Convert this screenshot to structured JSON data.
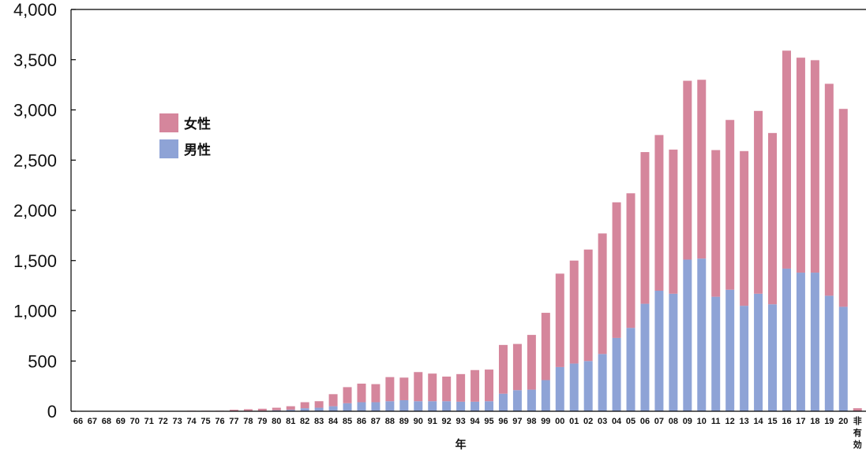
{
  "chart_data": {
    "type": "bar",
    "stacked": true,
    "xlabel": "年",
    "ylabel": "",
    "ylim": [
      0,
      4000
    ],
    "yticks": [
      0,
      500,
      1000,
      1500,
      2000,
      2500,
      3000,
      3500,
      4000
    ],
    "ytick_labels": [
      "0",
      "500",
      "1,000",
      "1,500",
      "2,000",
      "2,500",
      "3,000",
      "3,500",
      "4,000"
    ],
    "grid": false,
    "legend_position": "upper-left",
    "colors": {
      "female": "#d5869c",
      "male": "#8ea3d6"
    },
    "categories": [
      "66",
      "67",
      "68",
      "69",
      "70",
      "71",
      "72",
      "73",
      "74",
      "75",
      "76",
      "77",
      "78",
      "79",
      "80",
      "81",
      "82",
      "83",
      "84",
      "85",
      "86",
      "87",
      "88",
      "89",
      "90",
      "91",
      "92",
      "93",
      "94",
      "95",
      "96",
      "97",
      "98",
      "99",
      "00",
      "01",
      "02",
      "03",
      "04",
      "05",
      "06",
      "07",
      "08",
      "09",
      "10",
      "11",
      "12",
      "13",
      "14",
      "15",
      "16",
      "17",
      "18",
      "19",
      "20",
      "非有効"
    ],
    "series": [
      {
        "name": "男性",
        "values": [
          0,
          0,
          0,
          0,
          0,
          0,
          0,
          0,
          0,
          0,
          0,
          5,
          5,
          5,
          10,
          15,
          30,
          35,
          50,
          80,
          90,
          90,
          100,
          110,
          100,
          100,
          100,
          95,
          95,
          100,
          175,
          210,
          215,
          310,
          440,
          475,
          500,
          570,
          730,
          830,
          1070,
          1200,
          1170,
          1510,
          1520,
          1140,
          1210,
          1050,
          1170,
          1065,
          1420,
          1380,
          1380,
          1150,
          1040,
          0
        ]
      },
      {
        "name": "女性",
        "values": [
          0,
          0,
          0,
          0,
          0,
          0,
          0,
          0,
          5,
          5,
          5,
          10,
          15,
          20,
          25,
          35,
          60,
          65,
          120,
          160,
          185,
          180,
          240,
          225,
          290,
          275,
          245,
          275,
          315,
          315,
          485,
          460,
          545,
          670,
          930,
          1025,
          1110,
          1200,
          1350,
          1340,
          1510,
          1550,
          1435,
          1780,
          1780,
          1460,
          1690,
          1540,
          1820,
          1705,
          2170,
          2140,
          2115,
          2110,
          1970,
          30
        ]
      }
    ]
  }
}
